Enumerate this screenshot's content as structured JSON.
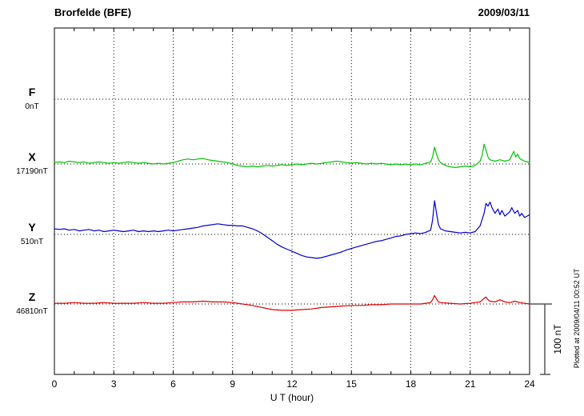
{
  "chart_data": {
    "type": "line",
    "title": "Brorfelde (BFE)",
    "date": "2009/03/11",
    "xlabel": "U T (hour)",
    "ylabel": "",
    "xlim": [
      0,
      24
    ],
    "x_ticks": [
      0,
      3,
      6,
      9,
      12,
      15,
      18,
      21,
      24
    ],
    "grid": "dotted vertical at 3h intervals, dotted horizontal baseline per trace",
    "scale_label": "100 nT",
    "scale_nT": 100,
    "plotted_at": "Plotted at 2009/04/11 00:52 UT",
    "series": [
      {
        "name": "F",
        "baseline_label": "0nT",
        "color": "#e8a000",
        "unit": "nT",
        "points": []
      },
      {
        "name": "X",
        "baseline_label": "17190nT",
        "color": "#00c400",
        "unit": "nT",
        "points": [
          [
            0,
            2
          ],
          [
            0.25,
            3
          ],
          [
            0.5,
            2
          ],
          [
            0.75,
            4
          ],
          [
            1,
            3
          ],
          [
            1.25,
            2
          ],
          [
            1.5,
            3
          ],
          [
            1.75,
            1
          ],
          [
            2,
            2
          ],
          [
            2.25,
            3
          ],
          [
            2.5,
            2
          ],
          [
            2.75,
            1
          ],
          [
            3,
            2
          ],
          [
            3.25,
            1
          ],
          [
            3.5,
            2
          ],
          [
            3.75,
            3
          ],
          [
            4,
            2
          ],
          [
            4.25,
            1
          ],
          [
            4.5,
            2
          ],
          [
            4.75,
            1
          ],
          [
            5,
            0
          ],
          [
            5.25,
            1
          ],
          [
            5.5,
            0
          ],
          [
            5.75,
            1
          ],
          [
            6,
            2
          ],
          [
            6.25,
            4
          ],
          [
            6.5,
            6
          ],
          [
            6.75,
            7
          ],
          [
            7,
            6
          ],
          [
            7.25,
            7
          ],
          [
            7.5,
            8
          ],
          [
            7.75,
            6
          ],
          [
            8,
            5
          ],
          [
            8.25,
            4
          ],
          [
            8.5,
            3
          ],
          [
            8.75,
            2
          ],
          [
            9,
            0
          ],
          [
            9.25,
            -2
          ],
          [
            9.5,
            -3
          ],
          [
            9.75,
            -4
          ],
          [
            10,
            -3
          ],
          [
            10.25,
            -4
          ],
          [
            10.5,
            -3
          ],
          [
            10.75,
            -2
          ],
          [
            11,
            -3
          ],
          [
            11.25,
            -2
          ],
          [
            11.5,
            -1
          ],
          [
            11.75,
            -2
          ],
          [
            12,
            -1
          ],
          [
            12.25,
            0
          ],
          [
            12.5,
            -1
          ],
          [
            12.75,
            0
          ],
          [
            13,
            1
          ],
          [
            13.25,
            0
          ],
          [
            13.5,
            1
          ],
          [
            13.75,
            2
          ],
          [
            14,
            3
          ],
          [
            14.25,
            4
          ],
          [
            14.5,
            3
          ],
          [
            14.75,
            2
          ],
          [
            15,
            1
          ],
          [
            15.25,
            2
          ],
          [
            15.5,
            1
          ],
          [
            15.75,
            0
          ],
          [
            16,
            1
          ],
          [
            16.25,
            0
          ],
          [
            16.5,
            1
          ],
          [
            16.75,
            0
          ],
          [
            17,
            -1
          ],
          [
            17.25,
            0
          ],
          [
            17.5,
            -1
          ],
          [
            17.75,
            0
          ],
          [
            18,
            -1
          ],
          [
            18.25,
            0
          ],
          [
            18.5,
            -1
          ],
          [
            18.75,
            1
          ],
          [
            19,
            3
          ],
          [
            19.1,
            10
          ],
          [
            19.2,
            24
          ],
          [
            19.3,
            14
          ],
          [
            19.4,
            6
          ],
          [
            19.5,
            2
          ],
          [
            19.75,
            -2
          ],
          [
            20,
            -4
          ],
          [
            20.25,
            -5
          ],
          [
            20.5,
            -4
          ],
          [
            20.75,
            -3
          ],
          [
            21,
            -4
          ],
          [
            21.25,
            -2
          ],
          [
            21.5,
            4
          ],
          [
            21.6,
            12
          ],
          [
            21.7,
            28
          ],
          [
            21.8,
            20
          ],
          [
            21.9,
            10
          ],
          [
            22,
            6
          ],
          [
            22.25,
            4
          ],
          [
            22.5,
            6
          ],
          [
            22.75,
            4
          ],
          [
            23,
            6
          ],
          [
            23.1,
            12
          ],
          [
            23.2,
            18
          ],
          [
            23.3,
            10
          ],
          [
            23.4,
            14
          ],
          [
            23.5,
            8
          ],
          [
            23.6,
            6
          ],
          [
            23.75,
            4
          ],
          [
            24,
            2
          ]
        ]
      },
      {
        "name": "Y",
        "baseline_label": "510nT",
        "color": "#0000cc",
        "unit": "nT",
        "points": [
          [
            0,
            8
          ],
          [
            0.25,
            7
          ],
          [
            0.5,
            8
          ],
          [
            0.75,
            6
          ],
          [
            1,
            7
          ],
          [
            1.25,
            5
          ],
          [
            1.5,
            6
          ],
          [
            1.75,
            7
          ],
          [
            2,
            5
          ],
          [
            2.25,
            6
          ],
          [
            2.5,
            4
          ],
          [
            2.75,
            5
          ],
          [
            3,
            6
          ],
          [
            3.25,
            5
          ],
          [
            3.5,
            4
          ],
          [
            3.75,
            5
          ],
          [
            4,
            6
          ],
          [
            4.25,
            4
          ],
          [
            4.5,
            5
          ],
          [
            4.75,
            4
          ],
          [
            5,
            5
          ],
          [
            5.25,
            4
          ],
          [
            5.5,
            5
          ],
          [
            5.75,
            6
          ],
          [
            6,
            5
          ],
          [
            6.25,
            6
          ],
          [
            6.5,
            7
          ],
          [
            6.75,
            8
          ],
          [
            7,
            9
          ],
          [
            7.25,
            10
          ],
          [
            7.5,
            12
          ],
          [
            7.75,
            13
          ],
          [
            8,
            14
          ],
          [
            8.25,
            15
          ],
          [
            8.5,
            14
          ],
          [
            8.75,
            13
          ],
          [
            9,
            13
          ],
          [
            9.25,
            12
          ],
          [
            9.5,
            12
          ],
          [
            9.75,
            10
          ],
          [
            10,
            8
          ],
          [
            10.25,
            5
          ],
          [
            10.5,
            1
          ],
          [
            10.75,
            -4
          ],
          [
            11,
            -9
          ],
          [
            11.25,
            -14
          ],
          [
            11.5,
            -18
          ],
          [
            11.75,
            -21
          ],
          [
            12,
            -24
          ],
          [
            12.25,
            -27
          ],
          [
            12.5,
            -30
          ],
          [
            12.75,
            -32
          ],
          [
            13,
            -33
          ],
          [
            13.25,
            -34
          ],
          [
            13.5,
            -33
          ],
          [
            13.75,
            -31
          ],
          [
            14,
            -29
          ],
          [
            14.25,
            -27
          ],
          [
            14.5,
            -25
          ],
          [
            14.75,
            -22
          ],
          [
            15,
            -20
          ],
          [
            15.25,
            -18
          ],
          [
            15.5,
            -16
          ],
          [
            15.75,
            -14
          ],
          [
            16,
            -12
          ],
          [
            16.25,
            -10
          ],
          [
            16.5,
            -9
          ],
          [
            16.75,
            -7
          ],
          [
            17,
            -5
          ],
          [
            17.25,
            -3
          ],
          [
            17.5,
            -2
          ],
          [
            17.75,
            0
          ],
          [
            18,
            1
          ],
          [
            18.25,
            2
          ],
          [
            18.5,
            1
          ],
          [
            18.75,
            3
          ],
          [
            19,
            6
          ],
          [
            19.1,
            20
          ],
          [
            19.2,
            48
          ],
          [
            19.3,
            30
          ],
          [
            19.4,
            14
          ],
          [
            19.5,
            8
          ],
          [
            19.75,
            5
          ],
          [
            20,
            4
          ],
          [
            20.25,
            3
          ],
          [
            20.5,
            2
          ],
          [
            20.75,
            3
          ],
          [
            21,
            2
          ],
          [
            21.25,
            4
          ],
          [
            21.5,
            12
          ],
          [
            21.7,
            30
          ],
          [
            21.8,
            44
          ],
          [
            21.9,
            40
          ],
          [
            22,
            46
          ],
          [
            22.1,
            38
          ],
          [
            22.25,
            30
          ],
          [
            22.4,
            36
          ],
          [
            22.5,
            28
          ],
          [
            22.6,
            34
          ],
          [
            22.75,
            26
          ],
          [
            23,
            32
          ],
          [
            23.1,
            38
          ],
          [
            23.25,
            30
          ],
          [
            23.4,
            34
          ],
          [
            23.5,
            26
          ],
          [
            23.6,
            30
          ],
          [
            23.75,
            24
          ],
          [
            24,
            28
          ]
        ]
      },
      {
        "name": "Z",
        "baseline_label": "46810nT",
        "color": "#dd0000",
        "unit": "nT",
        "points": [
          [
            0,
            1
          ],
          [
            0.5,
            1
          ],
          [
            1,
            2
          ],
          [
            1.5,
            1
          ],
          [
            2,
            1
          ],
          [
            2.5,
            2
          ],
          [
            3,
            1
          ],
          [
            3.5,
            1
          ],
          [
            4,
            1
          ],
          [
            4.5,
            2
          ],
          [
            5,
            1
          ],
          [
            5.5,
            1
          ],
          [
            6,
            2
          ],
          [
            6.5,
            3
          ],
          [
            7,
            3
          ],
          [
            7.5,
            4
          ],
          [
            8,
            3
          ],
          [
            8.5,
            3
          ],
          [
            9,
            2
          ],
          [
            9.5,
            0
          ],
          [
            10,
            -2
          ],
          [
            10.5,
            -5
          ],
          [
            11,
            -8
          ],
          [
            11.5,
            -9
          ],
          [
            12,
            -9
          ],
          [
            12.5,
            -8
          ],
          [
            13,
            -7
          ],
          [
            13.5,
            -5
          ],
          [
            14,
            -4
          ],
          [
            14.5,
            -3
          ],
          [
            15,
            -2
          ],
          [
            15.5,
            -2
          ],
          [
            16,
            -1
          ],
          [
            16.5,
            -1
          ],
          [
            17,
            0
          ],
          [
            17.5,
            0
          ],
          [
            18,
            0
          ],
          [
            18.5,
            0
          ],
          [
            18.75,
            1
          ],
          [
            19,
            2
          ],
          [
            19.1,
            6
          ],
          [
            19.2,
            12
          ],
          [
            19.3,
            7
          ],
          [
            19.4,
            3
          ],
          [
            19.5,
            2
          ],
          [
            20,
            1
          ],
          [
            20.5,
            0
          ],
          [
            21,
            1
          ],
          [
            21.25,
            2
          ],
          [
            21.5,
            3
          ],
          [
            21.7,
            8
          ],
          [
            21.8,
            10
          ],
          [
            21.9,
            6
          ],
          [
            22,
            4
          ],
          [
            22.25,
            3
          ],
          [
            22.5,
            6
          ],
          [
            22.75,
            3
          ],
          [
            23,
            2
          ],
          [
            23.25,
            4
          ],
          [
            23.5,
            2
          ],
          [
            23.75,
            1
          ],
          [
            24,
            0
          ]
        ]
      }
    ]
  }
}
